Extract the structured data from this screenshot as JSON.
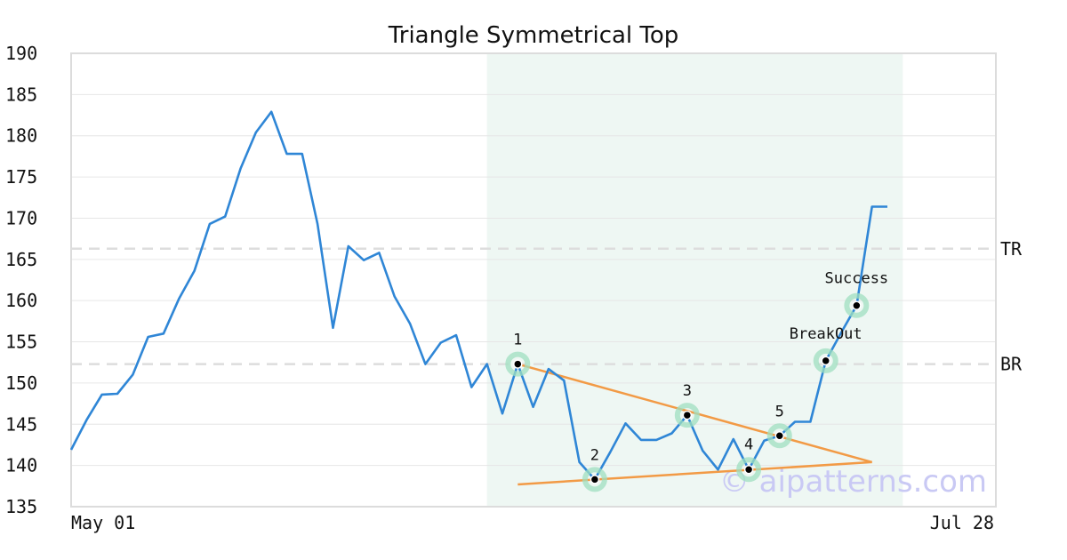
{
  "chart_data": {
    "type": "line",
    "title": "Triangle Symmetrical Top",
    "x_range": [
      "May 01",
      "Jul 28"
    ],
    "x_tick_labels": [
      "May 01",
      "Jul 28"
    ],
    "ylim": [
      135,
      190
    ],
    "y_ticks": [
      135,
      140,
      145,
      150,
      155,
      160,
      165,
      170,
      175,
      180,
      185,
      190
    ],
    "grid": "horizontal",
    "series": [
      {
        "color": "#2f86d6",
        "values": [
          141.9,
          145.5,
          148.6,
          148.7,
          151.0,
          155.6,
          156.0,
          160.2,
          163.6,
          169.3,
          170.2,
          176.0,
          180.4,
          182.9,
          177.8,
          177.8,
          169.3,
          156.7,
          166.6,
          164.9,
          165.8,
          160.5,
          157.2,
          152.3,
          154.9,
          155.8,
          149.5,
          152.3,
          146.3,
          152.3,
          147.1,
          151.7,
          150.3,
          140.4,
          138.3,
          141.6,
          145.1,
          143.1,
          143.1,
          143.9,
          146.1,
          141.8,
          139.5,
          143.2,
          139.5,
          143.0,
          143.6,
          145.3,
          145.3,
          152.7,
          156.1,
          159.4,
          171.4,
          171.4
        ]
      }
    ],
    "pattern_region": {
      "start_index": 27,
      "end_index": 54,
      "color": "#eef7f3"
    },
    "levels": [
      {
        "label": "TR",
        "value": 166.3
      },
      {
        "label": "BR",
        "value": 152.3
      }
    ],
    "trendlines": [
      {
        "from": {
          "index": 29,
          "value": 152.3
        },
        "to": {
          "index": 52,
          "value": 140.4
        },
        "color": "#f29a45"
      },
      {
        "from": {
          "index": 29,
          "value": 137.7
        },
        "to": {
          "index": 52,
          "value": 140.4
        },
        "color": "#f29a45"
      }
    ],
    "points": [
      {
        "label": "1",
        "index": 29,
        "value": 152.3
      },
      {
        "label": "2",
        "index": 34,
        "value": 138.3
      },
      {
        "label": "3",
        "index": 40,
        "value": 146.1
      },
      {
        "label": "4",
        "index": 44,
        "value": 139.5
      },
      {
        "label": "5",
        "index": 46,
        "value": 143.6
      },
      {
        "label": "BreakOut",
        "index": 49,
        "value": 152.7
      },
      {
        "label": "Success",
        "index": 51,
        "value": 159.4
      }
    ],
    "watermark": "© aipatterns.com"
  }
}
